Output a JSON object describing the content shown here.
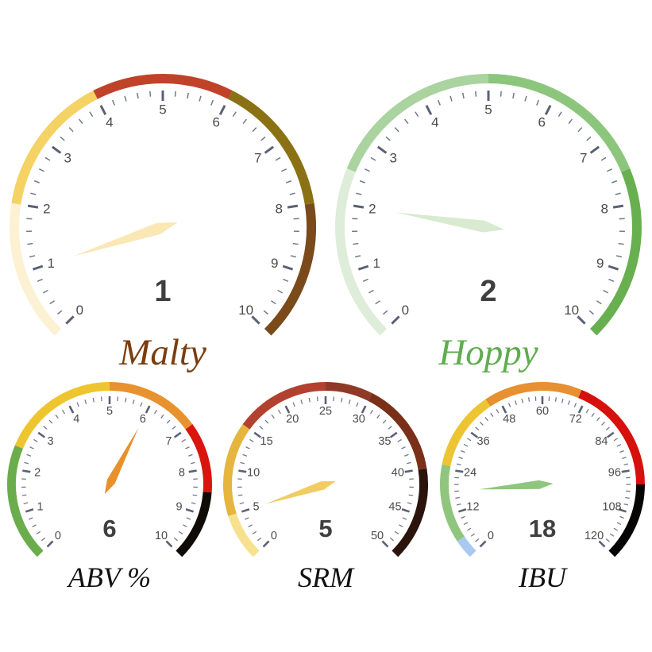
{
  "page": {
    "background": "#ffffff"
  },
  "chart_data": [
    {
      "type": "gauge",
      "id": "malty",
      "title": "Malty",
      "title_color": "#7C3D0E",
      "value": 1,
      "value_color": "#3F3F3F",
      "min": 0,
      "max": 10,
      "major_tick_interval": 1,
      "minor_tick_splits": 5,
      "tick_labels": [
        "0",
        "1",
        "2",
        "3",
        "4",
        "5",
        "6",
        "7",
        "8",
        "9",
        "10"
      ],
      "start_angle": 225,
      "end_angle": -45,
      "tick_color": "#5A6175",
      "tick_label_color": "#4B4B4B",
      "needle_color": "#FAE7B4",
      "segments": [
        {
          "from": 0,
          "to": 2,
          "color": "#FCF1D2"
        },
        {
          "from": 2,
          "to": 4,
          "color": "#F5D264"
        },
        {
          "from": 4,
          "to": 6,
          "color": "#C04229"
        },
        {
          "from": 6,
          "to": 8,
          "color": "#8A7214"
        },
        {
          "from": 8,
          "to": 10,
          "color": "#7B4A1B"
        }
      ]
    },
    {
      "type": "gauge",
      "id": "hoppy",
      "title": "Hoppy",
      "title_color": "#5FAD4E",
      "value": 2,
      "value_color": "#3F3F3F",
      "min": 0,
      "max": 10,
      "major_tick_interval": 1,
      "minor_tick_splits": 5,
      "tick_labels": [
        "0",
        "1",
        "2",
        "3",
        "4",
        "5",
        "6",
        "7",
        "8",
        "9",
        "10"
      ],
      "start_angle": 225,
      "end_angle": -45,
      "tick_color": "#5A6175",
      "tick_label_color": "#4B4B4B",
      "needle_color": "#D8EACF",
      "segments": [
        {
          "from": 0,
          "to": 2.5,
          "color": "#DEEDD9"
        },
        {
          "from": 2.5,
          "to": 5,
          "color": "#AAD3A0"
        },
        {
          "from": 5,
          "to": 7.5,
          "color": "#8CC67D"
        },
        {
          "from": 7.5,
          "to": 10,
          "color": "#68B04F"
        }
      ]
    },
    {
      "type": "gauge",
      "id": "abv",
      "title": "ABV %",
      "title_color": "#111111",
      "value": 6,
      "value_color": "#3F3F3F",
      "min": 0,
      "max": 10,
      "major_tick_interval": 1,
      "minor_tick_splits": 5,
      "tick_labels": [
        "0",
        "1",
        "2",
        "3",
        "4",
        "5",
        "6",
        "7",
        "8",
        "9",
        "10"
      ],
      "start_angle": 225,
      "end_angle": -45,
      "tick_color": "#5A6175",
      "tick_label_color": "#4B4B4B",
      "needle_color": "#E8912C",
      "segments": [
        {
          "from": 0,
          "to": 2.5,
          "color": "#6BAD4C"
        },
        {
          "from": 2.5,
          "to": 5,
          "color": "#EFC52F"
        },
        {
          "from": 5,
          "to": 7,
          "color": "#E8922F"
        },
        {
          "from": 7,
          "to": 8.5,
          "color": "#D9150E"
        },
        {
          "from": 8.5,
          "to": 10,
          "color": "#0F0C08"
        }
      ]
    },
    {
      "type": "gauge",
      "id": "srm",
      "title": "SRM",
      "title_color": "#111111",
      "value": 5,
      "value_color": "#3F3F3F",
      "min": 0,
      "max": 50,
      "major_tick_interval": 5,
      "minor_tick_splits": 5,
      "tick_labels": [
        "0",
        "5",
        "10",
        "15",
        "20",
        "25",
        "30",
        "35",
        "40",
        "45",
        "50"
      ],
      "start_angle": 225,
      "end_angle": -45,
      "tick_color": "#5A6175",
      "tick_label_color": "#4B4B4B",
      "needle_color": "#F0CC63",
      "segments": [
        {
          "from": 0,
          "to": 5,
          "color": "#F7E18F"
        },
        {
          "from": 5,
          "to": 15,
          "color": "#E5B53E"
        },
        {
          "from": 15,
          "to": 25,
          "color": "#B24130"
        },
        {
          "from": 25,
          "to": 30,
          "color": "#8F3A26"
        },
        {
          "from": 30,
          "to": 40,
          "color": "#7A3018"
        },
        {
          "from": 40,
          "to": 50,
          "color": "#2A140C"
        }
      ]
    },
    {
      "type": "gauge",
      "id": "ibu",
      "title": "IBU",
      "title_color": "#111111",
      "value": 18,
      "value_color": "#3F3F3F",
      "min": 0,
      "max": 120,
      "major_tick_interval": 12,
      "minor_tick_splits": 6,
      "tick_labels": [
        "0",
        "12",
        "24",
        "36",
        "48",
        "60",
        "72",
        "84",
        "96",
        "108",
        "120"
      ],
      "start_angle": 225,
      "end_angle": -45,
      "tick_color": "#5A6175",
      "tick_label_color": "#4B4B4B",
      "needle_color": "#8FC57D",
      "segments": [
        {
          "from": 0,
          "to": 5,
          "color": "#A9C9F1"
        },
        {
          "from": 5,
          "to": 25,
          "color": "#90C57E"
        },
        {
          "from": 25,
          "to": 45,
          "color": "#EDC431"
        },
        {
          "from": 45,
          "to": 70,
          "color": "#E69031"
        },
        {
          "from": 70,
          "to": 100,
          "color": "#D6100C"
        },
        {
          "from": 100,
          "to": 120,
          "color": "#070503"
        }
      ]
    }
  ]
}
